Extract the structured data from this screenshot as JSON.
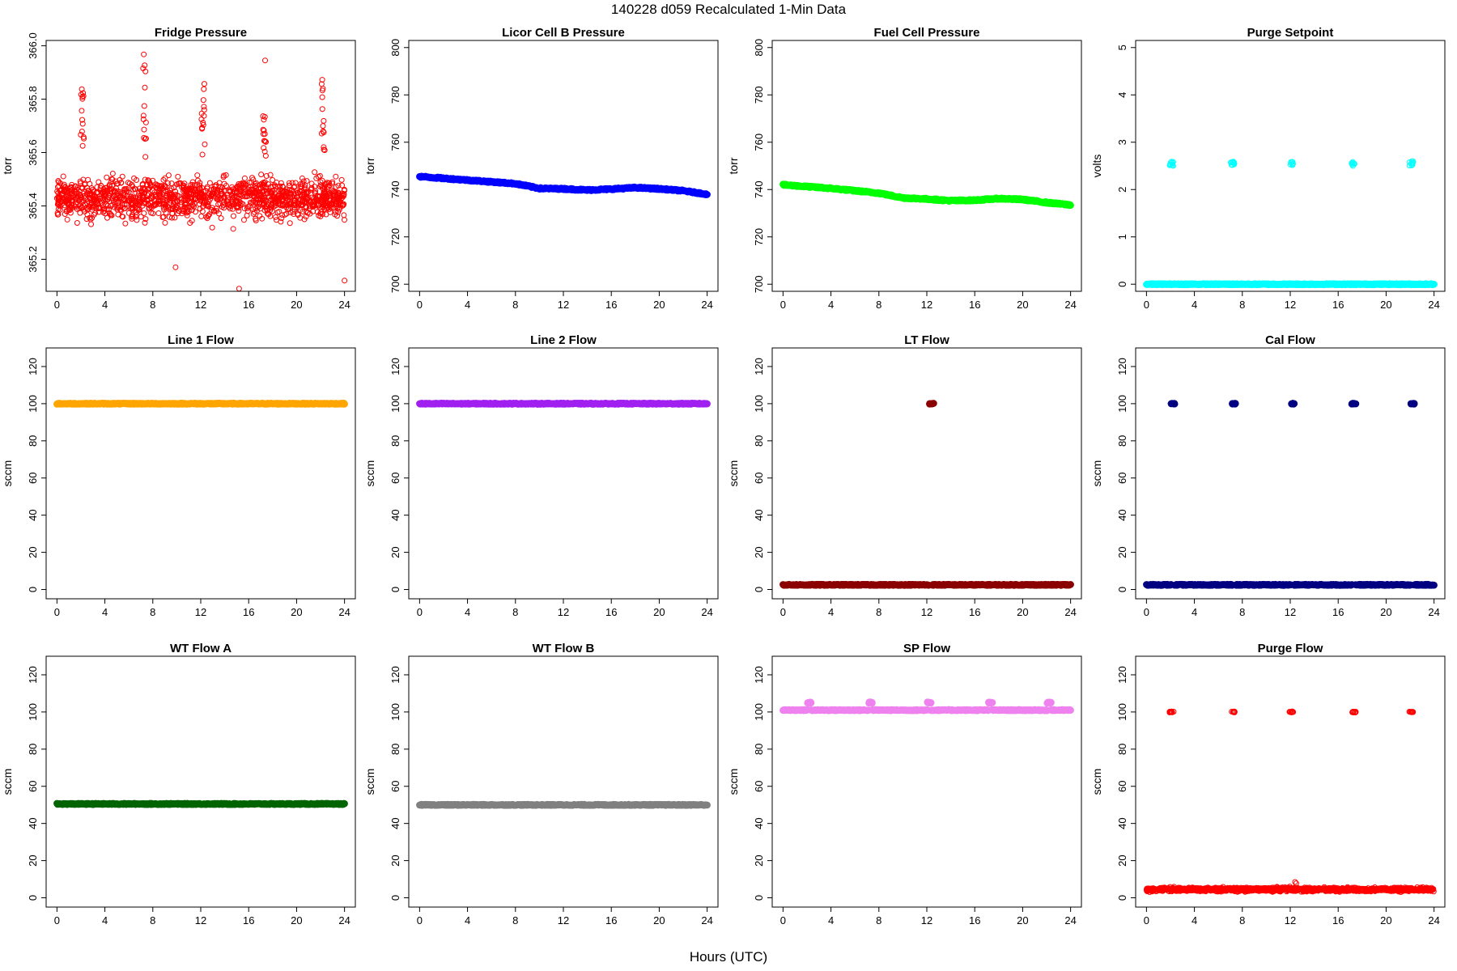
{
  "page": {
    "main_title": "140228   d059   Recalculated 1-Min Data",
    "x_axis_title": "Hours (UTC)"
  },
  "chart_data": [
    {
      "type": "scatter",
      "title": "Fridge Pressure",
      "ylabel": "torr",
      "xlabel": "",
      "x_ticks": [
        0,
        4,
        8,
        12,
        16,
        20,
        24
      ],
      "y_ticks": [
        365.2,
        365.4,
        365.6,
        365.8,
        366.0
      ],
      "y_tick_labels": [
        "365.2",
        "365.4",
        "365.6",
        "365.8",
        "366.0"
      ],
      "xlim": [
        0,
        24
      ],
      "ylim": [
        365.08,
        366.02
      ],
      "color": "#ff0000",
      "marker": "open-circle",
      "series": [
        {
          "kind": "noise",
          "base": 365.43,
          "amp": 0.11,
          "spikes": [
            [
              2.1,
              365.88
            ],
            [
              7.3,
              365.97
            ],
            [
              12.2,
              365.87
            ],
            [
              17.3,
              365.98
            ],
            [
              22.2,
              365.88
            ]
          ],
          "outliers": [
            [
              15.2,
              365.09
            ],
            [
              24.0,
              365.12
            ],
            [
              9.9,
              365.17
            ]
          ]
        }
      ],
      "grid": false
    },
    {
      "type": "scatter",
      "title": "Licor Cell B Pressure",
      "ylabel": "torr",
      "xlabel": "",
      "x_ticks": [
        0,
        4,
        8,
        12,
        16,
        20,
        24
      ],
      "y_ticks": [
        700,
        720,
        740,
        760,
        780,
        800
      ],
      "y_tick_labels": [
        "700",
        "720",
        "740",
        "760",
        "780",
        "800"
      ],
      "xlim": [
        0,
        24
      ],
      "ylim": [
        697,
        803
      ],
      "color": "#0000ff",
      "marker": "filled-circle",
      "series": [
        {
          "kind": "line",
          "points": [
            [
              0,
              745.5
            ],
            [
              4,
              744
            ],
            [
              8,
              742.5
            ],
            [
              10,
              740.5
            ],
            [
              12,
              740.3
            ],
            [
              14,
              739.8
            ],
            [
              16,
              740.2
            ],
            [
              18,
              740.8
            ],
            [
              20,
              740.3
            ],
            [
              22,
              739.5
            ],
            [
              24,
              738
            ]
          ]
        }
      ],
      "grid": false
    },
    {
      "type": "scatter",
      "title": "Fuel Cell Pressure",
      "ylabel": "torr",
      "xlabel": "",
      "x_ticks": [
        0,
        4,
        8,
        12,
        16,
        20,
        24
      ],
      "y_ticks": [
        700,
        720,
        740,
        760,
        780,
        800
      ],
      "y_tick_labels": [
        "700",
        "720",
        "740",
        "760",
        "780",
        "800"
      ],
      "xlim": [
        0,
        24
      ],
      "ylim": [
        697,
        803
      ],
      "color": "#00ff00",
      "marker": "filled-circle",
      "series": [
        {
          "kind": "line",
          "points": [
            [
              0,
              742
            ],
            [
              4,
              740.5
            ],
            [
              8,
              738.5
            ],
            [
              10,
              736.5
            ],
            [
              12,
              736
            ],
            [
              14,
              735.3
            ],
            [
              16,
              735.5
            ],
            [
              18,
              736.2
            ],
            [
              20,
              735.8
            ],
            [
              22,
              734.5
            ],
            [
              24,
              733.5
            ]
          ]
        }
      ],
      "grid": false
    },
    {
      "type": "scatter",
      "title": "Purge Setpoint",
      "ylabel": "volts",
      "xlabel": "",
      "x_ticks": [
        0,
        4,
        8,
        12,
        16,
        20,
        24
      ],
      "y_ticks": [
        0,
        1,
        2,
        3,
        4,
        5
      ],
      "y_tick_labels": [
        "0",
        "1",
        "2",
        "3",
        "4",
        "5"
      ],
      "xlim": [
        0,
        24
      ],
      "ylim": [
        -0.15,
        5.15
      ],
      "color": "#00ffff",
      "marker": "mixed",
      "series": [
        {
          "kind": "baseline",
          "value": 0.0
        },
        {
          "kind": "clusters",
          "value": 2.55,
          "spread": 0.05,
          "open": true,
          "centers": [
            2.1,
            7.2,
            12.1,
            17.3,
            22.1
          ]
        }
      ],
      "grid": false
    },
    {
      "type": "scatter",
      "title": "Line 1 Flow",
      "ylabel": "sccm",
      "xlabel": "",
      "x_ticks": [
        0,
        4,
        8,
        12,
        16,
        20,
        24
      ],
      "y_ticks": [
        0,
        20,
        40,
        60,
        80,
        100,
        120
      ],
      "y_tick_labels": [
        "0",
        "20",
        "40",
        "60",
        "80",
        "100",
        "120"
      ],
      "xlim": [
        0,
        24
      ],
      "ylim": [
        -5,
        130
      ],
      "color": "#ffa500",
      "marker": "filled-circle",
      "series": [
        {
          "kind": "baseline",
          "value": 100
        }
      ],
      "grid": false
    },
    {
      "type": "scatter",
      "title": "Line 2 Flow",
      "ylabel": "sccm",
      "xlabel": "",
      "x_ticks": [
        0,
        4,
        8,
        12,
        16,
        20,
        24
      ],
      "y_ticks": [
        0,
        20,
        40,
        60,
        80,
        100,
        120
      ],
      "y_tick_labels": [
        "0",
        "20",
        "40",
        "60",
        "80",
        "100",
        "120"
      ],
      "xlim": [
        0,
        24
      ],
      "ylim": [
        -5,
        130
      ],
      "color": "#a020f0",
      "marker": "filled-circle",
      "series": [
        {
          "kind": "baseline",
          "value": 100
        }
      ],
      "grid": false
    },
    {
      "type": "scatter",
      "title": "LT Flow",
      "ylabel": "sccm",
      "xlabel": "",
      "x_ticks": [
        0,
        4,
        8,
        12,
        16,
        20,
        24
      ],
      "y_ticks": [
        0,
        20,
        40,
        60,
        80,
        100,
        120
      ],
      "y_tick_labels": [
        "0",
        "20",
        "40",
        "60",
        "80",
        "100",
        "120"
      ],
      "xlim": [
        0,
        24
      ],
      "ylim": [
        -5,
        130
      ],
      "color": "#8b0000",
      "marker": "filled-circle",
      "series": [
        {
          "kind": "baseline",
          "value": 2.5,
          "gaps": [
            12.3
          ]
        },
        {
          "kind": "clusters",
          "value": 100,
          "spread": 0.2,
          "open": false,
          "centers": [
            12.4
          ]
        }
      ],
      "grid": false
    },
    {
      "type": "scatter",
      "title": "Cal Flow",
      "ylabel": "sccm",
      "xlabel": "",
      "x_ticks": [
        0,
        4,
        8,
        12,
        16,
        20,
        24
      ],
      "y_ticks": [
        0,
        20,
        40,
        60,
        80,
        100,
        120
      ],
      "y_tick_labels": [
        "0",
        "20",
        "40",
        "60",
        "80",
        "100",
        "120"
      ],
      "xlim": [
        0,
        24
      ],
      "ylim": [
        -5,
        130
      ],
      "color": "#000080",
      "marker": "filled-circle",
      "series": [
        {
          "kind": "baseline",
          "value": 2.5,
          "gaps": [
            2.2,
            7.3,
            12.2,
            17.3,
            22.2
          ]
        },
        {
          "kind": "clusters",
          "value": 100,
          "spread": 0.2,
          "open": false,
          "centers": [
            2.2,
            7.3,
            12.2,
            17.3,
            22.2
          ]
        }
      ],
      "grid": false
    },
    {
      "type": "scatter",
      "title": "WT Flow A",
      "ylabel": "sccm",
      "xlabel": "",
      "x_ticks": [
        0,
        4,
        8,
        12,
        16,
        20,
        24
      ],
      "y_ticks": [
        0,
        20,
        40,
        60,
        80,
        100,
        120
      ],
      "y_tick_labels": [
        "0",
        "20",
        "40",
        "60",
        "80",
        "100",
        "120"
      ],
      "xlim": [
        0,
        24
      ],
      "ylim": [
        -5,
        130
      ],
      "color": "#006400",
      "marker": "filled-circle",
      "series": [
        {
          "kind": "baseline",
          "value": 50.5
        }
      ],
      "grid": false
    },
    {
      "type": "scatter",
      "title": "WT Flow B",
      "ylabel": "sccm",
      "xlabel": "",
      "x_ticks": [
        0,
        4,
        8,
        12,
        16,
        20,
        24
      ],
      "y_ticks": [
        0,
        20,
        40,
        60,
        80,
        100,
        120
      ],
      "y_tick_labels": [
        "0",
        "20",
        "40",
        "60",
        "80",
        "100",
        "120"
      ],
      "xlim": [
        0,
        24
      ],
      "ylim": [
        -5,
        130
      ],
      "color": "#808080",
      "marker": "filled-circle",
      "series": [
        {
          "kind": "baseline",
          "value": 50
        }
      ],
      "grid": false
    },
    {
      "type": "scatter",
      "title": "SP Flow",
      "ylabel": "sccm",
      "xlabel": "",
      "x_ticks": [
        0,
        4,
        8,
        12,
        16,
        20,
        24
      ],
      "y_ticks": [
        0,
        20,
        40,
        60,
        80,
        100,
        120
      ],
      "y_tick_labels": [
        "0",
        "20",
        "40",
        "60",
        "80",
        "100",
        "120"
      ],
      "xlim": [
        0,
        24
      ],
      "ylim": [
        -5,
        130
      ],
      "color": "#ee82ee",
      "marker": "filled-circle",
      "series": [
        {
          "kind": "baseline",
          "value": 101,
          "gaps": [
            2.2,
            7.3,
            12.2,
            17.3,
            22.2
          ]
        },
        {
          "kind": "clusters",
          "value": 105,
          "spread": 0.35,
          "open": false,
          "centers": [
            2.2,
            7.3,
            12.2,
            17.3,
            22.2
          ]
        }
      ],
      "grid": false
    },
    {
      "type": "scatter",
      "title": "Purge Flow",
      "ylabel": "sccm",
      "xlabel": "",
      "x_ticks": [
        0,
        4,
        8,
        12,
        16,
        20,
        24
      ],
      "y_ticks": [
        0,
        20,
        40,
        60,
        80,
        100,
        120
      ],
      "y_tick_labels": [
        "0",
        "20",
        "40",
        "60",
        "80",
        "100",
        "120"
      ],
      "xlim": [
        0,
        24
      ],
      "ylim": [
        -5,
        130
      ],
      "color": "#ff0000",
      "marker": "open-circle",
      "series": [
        {
          "kind": "noise",
          "base": 4.5,
          "amp": 1.5,
          "spikes": [],
          "outliers": [
            [
              12.4,
              8.5
            ],
            [
              12.5,
              7.8
            ]
          ]
        },
        {
          "kind": "clusters",
          "value": 100,
          "spread": 0.3,
          "open": true,
          "centers": [
            2.1,
            7.2,
            12.1,
            17.3,
            22.1
          ]
        }
      ],
      "grid": false
    }
  ]
}
